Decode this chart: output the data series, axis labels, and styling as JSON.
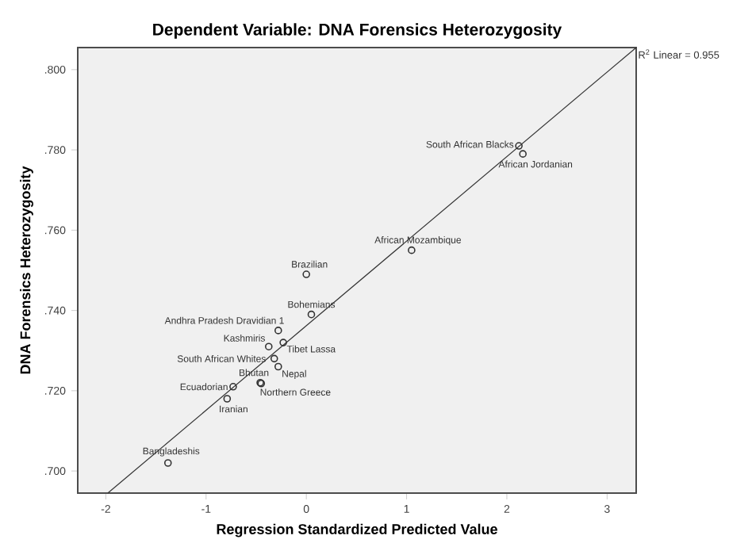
{
  "chart_data": {
    "type": "scatter",
    "title": "Dependent Variable: DNA Forensics Heterozygosity",
    "xlabel": "Regression Standardized Predicted Value",
    "ylabel": "DNA Forensics Heterozygosity",
    "xlim": [
      -2.28,
      3.29
    ],
    "ylim": [
      0.6945,
      0.8055
    ],
    "xticks": [
      -2,
      -1,
      0,
      1,
      2,
      3
    ],
    "yticks": [
      {
        "value": 0.7,
        "label": ".700"
      },
      {
        "value": 0.72,
        "label": ".720"
      },
      {
        "value": 0.74,
        "label": ".740"
      },
      {
        "value": 0.76,
        "label": ".760"
      },
      {
        "value": 0.78,
        "label": ".780"
      },
      {
        "value": 0.8,
        "label": ".800"
      }
    ],
    "marker": "circle",
    "series": [
      {
        "color": "#333333",
        "x": [
          2.12,
          2.16,
          1.05,
          0.0,
          0.05,
          -0.28,
          -0.375,
          -0.23,
          -0.32,
          -0.46,
          -0.28,
          -0.73,
          -0.45,
          -0.79,
          -1.38
        ],
        "values": [
          0.781,
          0.779,
          0.755,
          0.749,
          0.739,
          0.735,
          0.731,
          0.732,
          0.728,
          0.722,
          0.726,
          0.721,
          0.7218,
          0.718,
          0.702
        ]
      },
      {
        "type": "line",
        "marker": "none",
        "color": "#333333",
        "x": [
          -1.98,
          3.29
        ],
        "values": [
          0.6945,
          0.8055
        ]
      }
    ],
    "annotations": [
      {
        "text": "South African Blacks",
        "x": 2.12,
        "y": 0.781
      },
      {
        "text": "African Jordanian",
        "x": 2.16,
        "y": 0.779
      },
      {
        "text": "African Mozambique",
        "x": 1.05,
        "y": 0.755
      },
      {
        "text": "Brazilian",
        "x": 0.0,
        "y": 0.749
      },
      {
        "text": "Bohemians",
        "x": 0.05,
        "y": 0.739
      },
      {
        "text": "Andhra Pradesh Dravidian 1",
        "x": -0.28,
        "y": 0.735
      },
      {
        "text": "Kashmiris",
        "x": -0.375,
        "y": 0.731
      },
      {
        "text": "Tibet Lassa",
        "x": -0.23,
        "y": 0.732
      },
      {
        "text": "South African Whites",
        "x": -0.32,
        "y": 0.728
      },
      {
        "text": "Bhutan",
        "x": -0.46,
        "y": 0.722
      },
      {
        "text": "Nepal",
        "x": -0.28,
        "y": 0.726
      },
      {
        "text": "Ecuadorian",
        "x": -0.73,
        "y": 0.721
      },
      {
        "text": "Northern Greece",
        "x": -0.45,
        "y": 0.7218
      },
      {
        "text": "Iranian",
        "x": -0.79,
        "y": 0.718
      },
      {
        "text": "Bangladeshis",
        "x": -1.38,
        "y": 0.702
      },
      "R$^{2}$ Linear = 0.955"
    ]
  }
}
